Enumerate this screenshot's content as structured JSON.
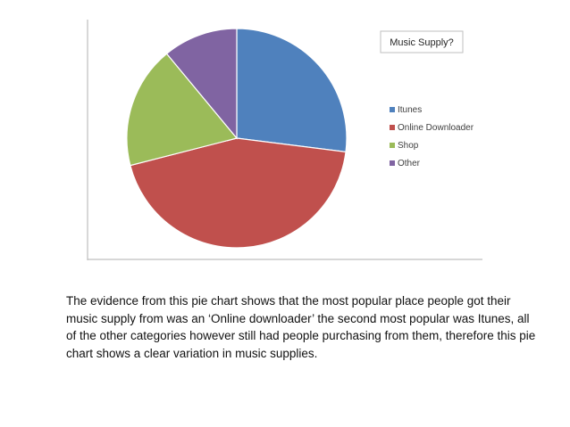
{
  "chart_data": {
    "type": "pie",
    "title": "Music Supply?",
    "slices": [
      {
        "label": "Itunes",
        "value": 27,
        "color": "#4F81BD"
      },
      {
        "label": "Online Downloader",
        "value": 44,
        "color": "#C0504D"
      },
      {
        "label": "Shop",
        "value": 18,
        "color": "#9BBB59"
      },
      {
        "label": "Other",
        "value": 11,
        "color": "#8064A2"
      }
    ],
    "legend_position": "right"
  },
  "caption": "The evidence from this pie chart shows that the most popular place people got their music supply from was an ‘Online downloader’ the second most popular was Itunes, all of the other categories however still had people purchasing from them, therefore this pie chart shows a clear variation in music supplies."
}
